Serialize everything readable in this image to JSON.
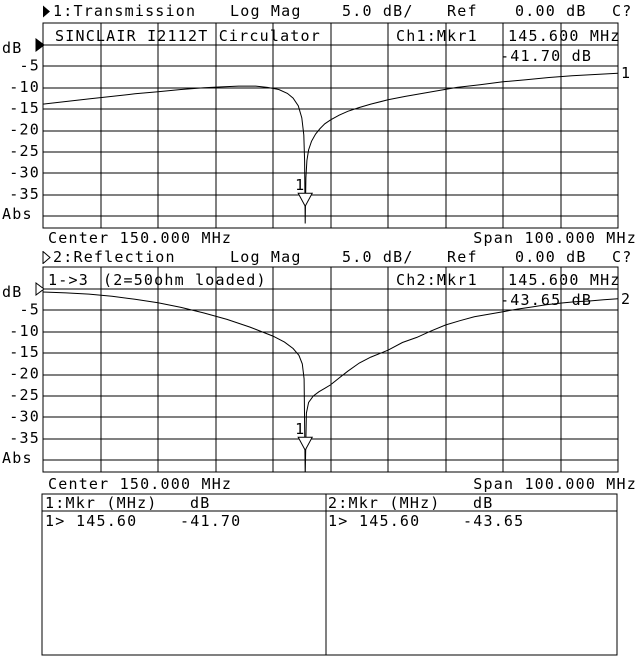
{
  "colors": {
    "background": "#ffffff",
    "foreground": "#000000"
  },
  "channel1": {
    "header": {
      "label": "1:Transmission",
      "format": "Log Mag",
      "scale": "5.0 dB/",
      "ref_label": "Ref",
      "ref_value": "0.00 dB",
      "status": "C?"
    },
    "title": "SINCLAIR I2112T Circulator",
    "marker_readout": {
      "channel_label": "Ch1:Mkr1",
      "freq": "145.600 MHz",
      "level": "-41.70 dB"
    },
    "axis": {
      "unit": "dB",
      "ticks": [
        "-5",
        "-10",
        "-15",
        "-20",
        "-25",
        "-30",
        "-35"
      ],
      "floor": "Abs"
    },
    "center": "Center 150.000 MHz",
    "span": "Span 100.000 MHz",
    "trace_number": "1"
  },
  "channel2": {
    "header": {
      "label": "2:Reflection",
      "format": "Log Mag",
      "scale": "5.0 dB/",
      "ref_label": "Ref",
      "ref_value": "0.00 dB",
      "status": "C?"
    },
    "port_path": "1->3",
    "note": "(2=50ohm loaded)",
    "marker_readout": {
      "channel_label": "Ch2:Mkr1",
      "freq": "145.600 MHz",
      "level": "-43.65 dB"
    },
    "axis": {
      "unit": "dB",
      "ticks": [
        "-5",
        "-10",
        "-15",
        "-20",
        "-25",
        "-30",
        "-35"
      ],
      "floor": "Abs"
    },
    "center": "Center 150.000 MHz",
    "span": "Span 100.000 MHz",
    "trace_number": "2"
  },
  "marker_table": {
    "left": {
      "header_mkr": "1:Mkr (MHz)",
      "header_db": "dB",
      "rows": [
        {
          "sel": "1>",
          "freq": "145.60",
          "db": "-41.70"
        }
      ]
    },
    "right": {
      "header_mkr": "2:Mkr (MHz)",
      "header_db": "dB",
      "rows": [
        {
          "sel": "1>",
          "freq": "145.60",
          "db": "-43.65"
        }
      ]
    }
  },
  "chart_data": [
    {
      "type": "line",
      "title": "SINCLAIR I2112T Circulator",
      "subtitle": "1:Transmission  Log Mag  5.0 dB/  Ref 0.00 dB",
      "ylabel": "dB",
      "x_center_mhz": 150.0,
      "x_span_mhz": 100.0,
      "x_range": [
        100,
        200
      ],
      "y_range": [
        -40,
        0
      ],
      "y_per_div": 5,
      "x_divisions": 10,
      "grid": true,
      "marker": {
        "f_mhz": 145.6,
        "db": -41.7,
        "label": "1"
      },
      "series": [
        {
          "name": "Trace 1 (Transmission)",
          "x": [
            100,
            104,
            108,
            112,
            116,
            120,
            124,
            128,
            131,
            134,
            137,
            139,
            141,
            142.5,
            143.5,
            144.4,
            145,
            145.35,
            145.5,
            145.6,
            145.72,
            145.9,
            146.2,
            146.7,
            147.4,
            148.2,
            149,
            150,
            151.5,
            153,
            155,
            157,
            160,
            163,
            166,
            169,
            172,
            176,
            180,
            184,
            188,
            192,
            196,
            200
          ],
          "y": [
            -13.8,
            -13.2,
            -12.6,
            -12.0,
            -11.4,
            -10.9,
            -10.4,
            -10.0,
            -9.8,
            -9.6,
            -9.6,
            -9.9,
            -10.4,
            -11.3,
            -12.4,
            -14.2,
            -17,
            -21,
            -27,
            -41.7,
            -31,
            -27,
            -24.5,
            -22.5,
            -20.8,
            -19.5,
            -18.4,
            -17.5,
            -16.4,
            -15.5,
            -14.6,
            -13.8,
            -12.8,
            -12.0,
            -11.3,
            -10.6,
            -9.9,
            -9.3,
            -8.6,
            -8.1,
            -7.6,
            -7.2,
            -6.9,
            -6.6
          ]
        }
      ]
    },
    {
      "type": "line",
      "title": "1->3 (2=50ohm loaded)",
      "subtitle": "2:Reflection  Log Mag  5.0 dB/  Ref 0.00 dB",
      "ylabel": "dB",
      "x_center_mhz": 150.0,
      "x_span_mhz": 100.0,
      "x_range": [
        100,
        200
      ],
      "y_range": [
        -40,
        0
      ],
      "y_per_div": 5,
      "x_divisions": 10,
      "grid": true,
      "marker": {
        "f_mhz": 145.6,
        "db": -43.65,
        "label": "1"
      },
      "series": [
        {
          "name": "Trace 2 (Reflection)",
          "x": [
            100,
            104,
            108,
            112,
            116,
            120,
            124,
            128,
            132,
            136,
            140,
            142,
            143.5,
            144.5,
            145.1,
            145.4,
            145.6,
            145.8,
            146.2,
            147,
            148,
            149,
            150,
            151.5,
            153,
            155,
            157,
            160,
            162.5,
            165,
            167.5,
            170,
            172.5,
            175,
            177.5,
            180,
            182.5,
            185,
            187.5,
            190,
            192.5,
            195,
            197.5,
            200
          ],
          "y": [
            -0.7,
            -0.9,
            -1.2,
            -1.7,
            -2.4,
            -3.2,
            -4.3,
            -5.6,
            -7.1,
            -8.9,
            -11.0,
            -12.4,
            -13.9,
            -15.5,
            -17.5,
            -21,
            -43.65,
            -29,
            -26.5,
            -25,
            -24,
            -23.2,
            -22.4,
            -20.8,
            -19.2,
            -17.3,
            -15.9,
            -14.3,
            -12.5,
            -11.3,
            -9.8,
            -8.4,
            -7.4,
            -6.5,
            -5.9,
            -5.3,
            -4.7,
            -4.2,
            -3.7,
            -3.3,
            -3.0,
            -2.8,
            -2.5,
            -2.3
          ]
        }
      ]
    }
  ]
}
